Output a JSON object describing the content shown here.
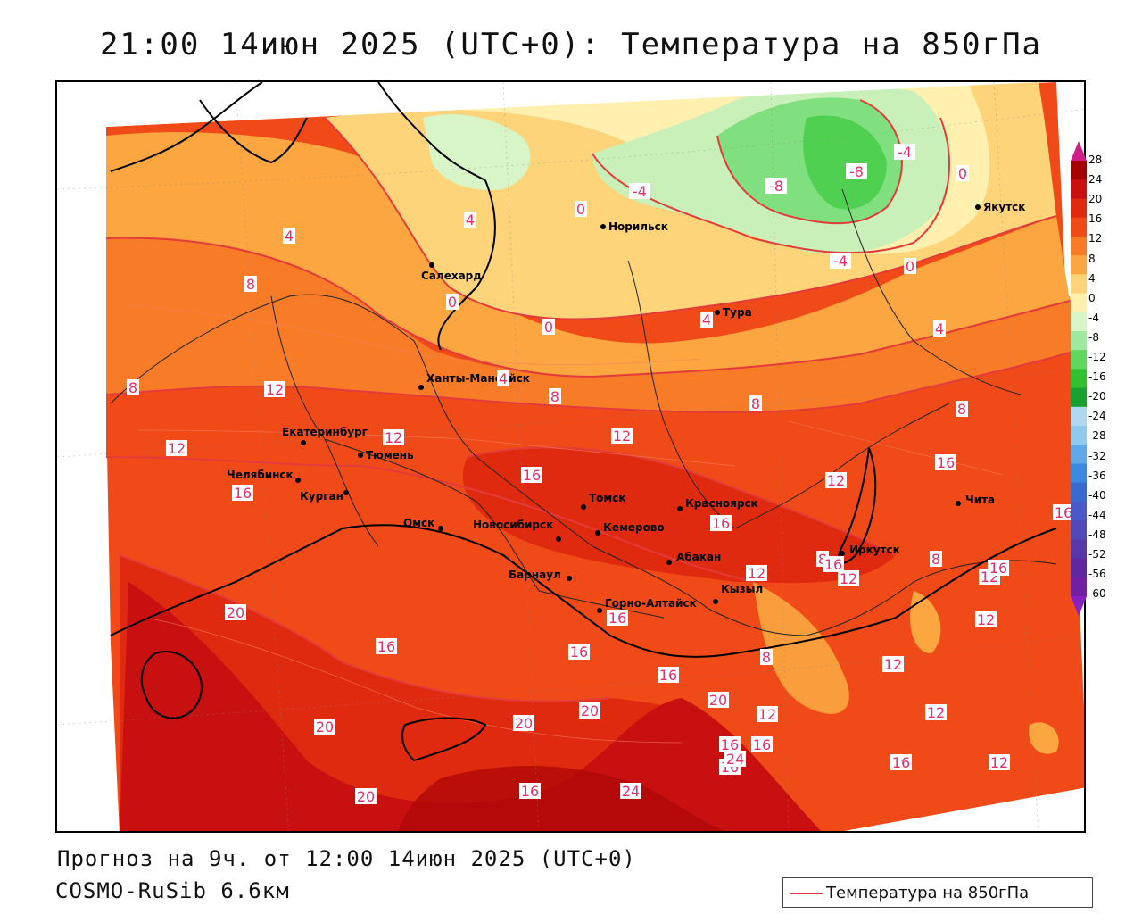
{
  "title": "21:00 14июн 2025 (UTC+0): Температура на 850гПа",
  "forecast_text": "Прогноз на 9ч. от 12:00 14июн 2025 (UTC+0)",
  "model_text": "COSMO-RuSib 6.6км",
  "legend": {
    "label": "Температура на 850гПа",
    "line_color": "#e33b3b"
  },
  "colorbar": {
    "labels": [
      "28",
      "24",
      "20",
      "16",
      "12",
      "8",
      "4",
      "0",
      "-4",
      "-8",
      "-12",
      "-16",
      "-20",
      "-24",
      "-28",
      "-32",
      "-36",
      "-40",
      "-44",
      "-48",
      "-52",
      "-56",
      "-60"
    ],
    "colors": [
      "#a50000",
      "#c81010",
      "#e02a10",
      "#f04a18",
      "#f87b28",
      "#fba640",
      "#fed47a",
      "#fff0b0",
      "#d8f5c8",
      "#a0e8a0",
      "#60d860",
      "#30c030",
      "#18a030",
      "#b0d8f0",
      "#90c8ee",
      "#60a8e8",
      "#3a88e0",
      "#3a6ad0",
      "#4a58c8",
      "#5048b8",
      "#5838a8",
      "#6028a0",
      "#7020a0"
    ]
  },
  "cities": [
    {
      "name": "Норильск"
    },
    {
      "name": "Якутск"
    },
    {
      "name": "Салехард"
    },
    {
      "name": "Тура"
    },
    {
      "name": "Ханты-Мансийск"
    },
    {
      "name": "Екатеринбург"
    },
    {
      "name": "Тюмень"
    },
    {
      "name": "Челябинск"
    },
    {
      "name": "Курган"
    },
    {
      "name": "Омск"
    },
    {
      "name": "Новосибирск"
    },
    {
      "name": "Томск"
    },
    {
      "name": "Кемерово"
    },
    {
      "name": "Красноярск"
    },
    {
      "name": "Барнаул"
    },
    {
      "name": "Абакан"
    },
    {
      "name": "Горно-Алтайск"
    },
    {
      "name": "Кызыл"
    },
    {
      "name": "Иркутск"
    },
    {
      "name": "Чита"
    }
  ],
  "isotherm_labels": [
    "-8",
    "-8",
    "-4",
    "-4",
    "-4",
    "0",
    "0",
    "0",
    "0",
    "0",
    "4",
    "4",
    "4",
    "4",
    "4",
    "8",
    "8",
    "8",
    "8",
    "8",
    "8",
    "8",
    "8",
    "12",
    "12",
    "12",
    "12",
    "12",
    "12",
    "12",
    "12",
    "12",
    "12",
    "12",
    "12",
    "12",
    "16",
    "16",
    "16",
    "16",
    "16",
    "16",
    "16",
    "16",
    "16",
    "16",
    "16",
    "16",
    "16",
    "16",
    "16",
    "16",
    "20",
    "20",
    "20",
    "20",
    "20",
    "20",
    "24",
    "24"
  ]
}
